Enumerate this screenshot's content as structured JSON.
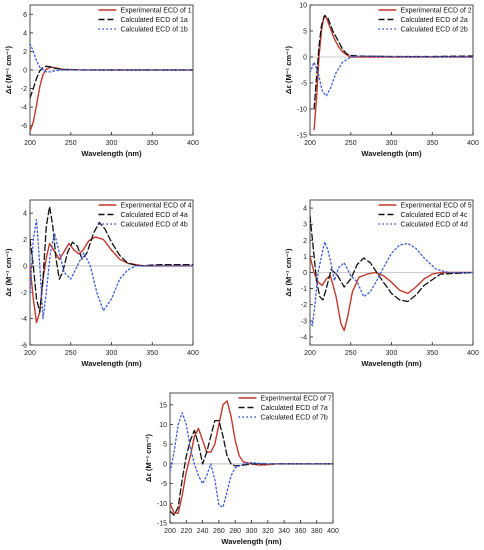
{
  "colors": {
    "experimental": "#c0392b",
    "calc_a": "#111111",
    "calc_b": "#3b5bdb",
    "axis": "#222222",
    "zero": "#999999"
  },
  "chart_data": [
    {
      "type": "line",
      "xlabel": "Wavelength (nm)",
      "ylabel": "Δε (M⁻¹ cm⁻¹)",
      "xlim": [
        200,
        400
      ],
      "ylim": [
        -7,
        7
      ],
      "xticks": [
        200,
        250,
        300,
        350,
        400
      ],
      "yticks": [
        -6,
        -4,
        -2,
        0,
        2,
        4,
        6
      ],
      "grid": false,
      "legend": "top-right",
      "series": [
        {
          "name": "Experimental ECD of 1",
          "style": "solid",
          "color": "#c0392b",
          "x": [
            200,
            204,
            208,
            212,
            216,
            220,
            225,
            230,
            240,
            260,
            300,
            400
          ],
          "y": [
            -6.6,
            -5.6,
            -3.8,
            -1.8,
            -0.5,
            0.1,
            0.3,
            0.25,
            0.08,
            0.02,
            0,
            0
          ]
        },
        {
          "name": "Calculated ECD of 1a",
          "style": "dashed",
          "color": "#111111",
          "x": [
            200,
            204,
            208,
            212,
            216,
            220,
            225,
            230,
            240,
            260,
            300,
            400
          ],
          "y": [
            -3.0,
            -2.0,
            -0.9,
            -0.1,
            0.3,
            0.4,
            0.35,
            0.2,
            0.05,
            0,
            0,
            0
          ]
        },
        {
          "name": "Calculated ECD of 1b",
          "style": "dotted",
          "color": "#3b5bdb",
          "x": [
            200,
            204,
            208,
            212,
            216,
            220,
            225,
            230,
            240,
            260,
            300,
            400
          ],
          "y": [
            2.8,
            2.0,
            1.0,
            0.3,
            0.0,
            -0.2,
            -0.2,
            -0.1,
            0,
            0,
            0,
            0
          ]
        }
      ]
    },
    {
      "type": "line",
      "xlabel": "Wavelength (nm)",
      "ylabel": "Δε (M⁻¹ cm⁻¹)",
      "xlim": [
        200,
        400
      ],
      "ylim": [
        -15,
        10
      ],
      "xticks": [
        200,
        250,
        300,
        350,
        400
      ],
      "yticks": [
        -15,
        -10,
        -5,
        0,
        5,
        10
      ],
      "grid": false,
      "legend": "top-right",
      "series": [
        {
          "name": "Experimental ECD of 2",
          "style": "solid",
          "color": "#c0392b",
          "x": [
            205,
            208,
            211,
            214,
            217,
            220,
            225,
            230,
            235,
            240,
            245,
            250,
            260,
            300,
            400
          ],
          "y": [
            -14,
            -8,
            0,
            5,
            7.8,
            7.6,
            5.5,
            3.5,
            2,
            1,
            0.4,
            0,
            0,
            0,
            0
          ]
        },
        {
          "name": "Calculated ECD of 2a",
          "style": "dashed",
          "color": "#111111",
          "x": [
            205,
            208,
            211,
            214,
            218,
            222,
            228,
            235,
            240,
            245,
            250,
            260,
            300,
            350,
            400
          ],
          "y": [
            -10,
            -4,
            2,
            6,
            8,
            7.5,
            5,
            3,
            1.5,
            0.6,
            0.3,
            0.2,
            0.1,
            0.1,
            0.2
          ]
        },
        {
          "name": "Calculated ECD of 2b",
          "style": "dotted",
          "color": "#3b5bdb",
          "x": [
            200,
            205,
            210,
            215,
            220,
            225,
            232,
            240,
            250,
            260,
            300,
            400
          ],
          "y": [
            -3,
            -1,
            -3,
            -6.5,
            -7.5,
            -6,
            -3,
            -1,
            0,
            0.2,
            0.1,
            0
          ]
        }
      ]
    },
    {
      "type": "line",
      "xlabel": "Wavelength (nm)",
      "ylabel": "Δε (M⁻¹ cm⁻¹)",
      "xlim": [
        200,
        400
      ],
      "ylim": [
        -6,
        5
      ],
      "xticks": [
        200,
        250,
        300,
        350,
        400
      ],
      "yticks": [
        -6,
        -4,
        -2,
        0,
        2,
        4
      ],
      "grid": false,
      "legend": "top-right",
      "series": [
        {
          "name": "Experimental ECD of 4",
          "style": "solid",
          "color": "#c0392b",
          "x": [
            200,
            204,
            208,
            212,
            216,
            220,
            224,
            230,
            236,
            242,
            248,
            254,
            260,
            265,
            272,
            280,
            290,
            300,
            310,
            320,
            340,
            400
          ],
          "y": [
            0,
            -2.5,
            -4.3,
            -3.5,
            -1,
            0.6,
            1.7,
            1.1,
            0.5,
            1.1,
            1.7,
            1.2,
            0.9,
            1.2,
            1.9,
            2.2,
            2.0,
            1.2,
            0.5,
            0.2,
            0,
            0
          ]
        },
        {
          "name": "Calculated ECD of 4a",
          "style": "dashed",
          "color": "#111111",
          "x": [
            200,
            204,
            208,
            212,
            216,
            220,
            224,
            228,
            232,
            236,
            240,
            246,
            252,
            258,
            264,
            270,
            278,
            285,
            292,
            300,
            310,
            320,
            335,
            360,
            400
          ],
          "y": [
            2,
            0,
            -2.5,
            -3.5,
            -1,
            3,
            4.5,
            3,
            0.5,
            -1,
            -0.5,
            1.0,
            1.8,
            1.5,
            0.5,
            1.0,
            2.5,
            3.3,
            2.8,
            1.8,
            0.8,
            0.2,
            0,
            0.1,
            0.1
          ]
        },
        {
          "name": "Calculated ECD of 4b",
          "style": "dotted",
          "color": "#3b5bdb",
          "x": [
            200,
            204,
            208,
            212,
            216,
            220,
            225,
            230,
            236,
            242,
            250,
            258,
            266,
            274,
            282,
            290,
            300,
            310,
            320,
            330,
            345,
            400
          ],
          "y": [
            -2,
            2,
            3.5,
            0,
            -4,
            -2,
            1,
            2.5,
            1,
            -0.5,
            -1,
            0,
            1.0,
            0,
            -2,
            -3.4,
            -2.5,
            -1.0,
            -0.3,
            0,
            0,
            0
          ]
        }
      ]
    },
    {
      "type": "line",
      "xlabel": "Wavelength (nm)",
      "ylabel": "Δε (M⁻¹ cm⁻¹)",
      "xlim": [
        200,
        400
      ],
      "ylim": [
        -4.5,
        4.5
      ],
      "xticks": [
        200,
        250,
        300,
        350,
        400
      ],
      "yticks": [
        -4,
        -3,
        -2,
        -1,
        0,
        1,
        2,
        3,
        4
      ],
      "grid": false,
      "legend": "top-right",
      "series": [
        {
          "name": "Experimental ECD of 5",
          "style": "solid",
          "color": "#c0392b",
          "x": [
            200,
            205,
            210,
            215,
            220,
            225,
            232,
            238,
            242,
            246,
            252,
            260,
            270,
            280,
            290,
            300,
            310,
            320,
            330,
            340,
            350,
            360,
            400
          ],
          "y": [
            1.0,
            0,
            -0.6,
            -0.8,
            -0.4,
            -0.2,
            -1.5,
            -3.2,
            -3.6,
            -2.8,
            -1.2,
            -0.3,
            -0.1,
            0,
            -0.2,
            -0.6,
            -1.1,
            -1.3,
            -0.9,
            -0.4,
            -0.1,
            0,
            0
          ]
        },
        {
          "name": "Calculated ECD of 4c",
          "style": "dashed",
          "color": "#111111",
          "x": [
            200,
            204,
            208,
            212,
            216,
            220,
            226,
            234,
            242,
            250,
            258,
            266,
            274,
            282,
            290,
            300,
            310,
            320,
            330,
            340,
            360,
            400
          ],
          "y": [
            3.5,
            1.5,
            -0.5,
            -1.5,
            -1.7,
            -1.0,
            0.2,
            -0.2,
            -0.9,
            -0.4,
            0.5,
            0.9,
            0.6,
            0,
            -0.6,
            -1.3,
            -1.7,
            -1.8,
            -1.4,
            -0.8,
            -0.1,
            0
          ]
        },
        {
          "name": "Calculated ECD of 4d",
          "style": "dotted",
          "color": "#3b5bdb",
          "x": [
            200,
            203,
            206,
            210,
            214,
            218,
            222,
            226,
            230,
            235,
            242,
            250,
            258,
            266,
            274,
            282,
            290,
            300,
            310,
            320,
            330,
            340,
            355,
            370,
            400
          ],
          "y": [
            -3.0,
            -3.3,
            -2,
            0,
            1.0,
            1.9,
            1.4,
            0.5,
            -0.5,
            0.3,
            0.6,
            -0.2,
            -0.6,
            -1.5,
            -1.2,
            -0.5,
            0.3,
            1.2,
            1.7,
            1.8,
            1.5,
            0.9,
            0.2,
            0,
            0
          ]
        }
      ]
    },
    {
      "type": "line",
      "xlabel": "Wavelength (nm)",
      "ylabel": "Δε (M⁻¹ cm⁻¹)",
      "xlim": [
        200,
        400
      ],
      "ylim": [
        -15,
        18
      ],
      "xticks": [
        200,
        220,
        240,
        260,
        280,
        300,
        320,
        340,
        360,
        380,
        400
      ],
      "yticks": [
        -15,
        -10,
        -5,
        0,
        5,
        10,
        15
      ],
      "grid": false,
      "legend": "top-right",
      "series": [
        {
          "name": "Experimental ECD of 7",
          "style": "solid",
          "color": "#c0392b",
          "x": [
            200,
            205,
            210,
            215,
            220,
            225,
            230,
            235,
            240,
            245,
            250,
            255,
            260,
            265,
            270,
            275,
            280,
            285,
            290,
            300,
            310,
            320,
            330,
            400
          ],
          "y": [
            -10,
            -12.5,
            -12.5,
            -8,
            -2,
            2,
            7,
            9,
            6,
            3,
            3,
            5,
            10,
            15,
            16,
            12,
            6,
            2,
            0.5,
            0,
            -0.3,
            -0.2,
            0,
            0
          ]
        },
        {
          "name": "Calculated ECD of 7a",
          "style": "dashed",
          "color": "#111111",
          "x": [
            200,
            205,
            210,
            215,
            220,
            225,
            230,
            235,
            240,
            245,
            250,
            255,
            260,
            265,
            270,
            275,
            280,
            290,
            300,
            320,
            400
          ],
          "y": [
            -12,
            -13,
            -11,
            -4,
            2,
            6,
            8.5,
            5,
            0,
            3,
            7,
            11,
            11,
            7,
            2,
            0,
            -0.5,
            -0.3,
            0,
            0,
            0
          ]
        },
        {
          "name": "Calculated ECD of 7b",
          "style": "dotted",
          "color": "#3b5bdb",
          "x": [
            200,
            205,
            210,
            215,
            220,
            225,
            230,
            235,
            240,
            245,
            250,
            255,
            260,
            265,
            270,
            275,
            280,
            290,
            300,
            320,
            400
          ],
          "y": [
            -2,
            3,
            10,
            13,
            10,
            4,
            0,
            -3,
            -5,
            -3,
            0,
            -4,
            -10.5,
            -11,
            -7,
            -3,
            -1,
            0,
            0.3,
            0,
            0
          ]
        }
      ]
    }
  ]
}
